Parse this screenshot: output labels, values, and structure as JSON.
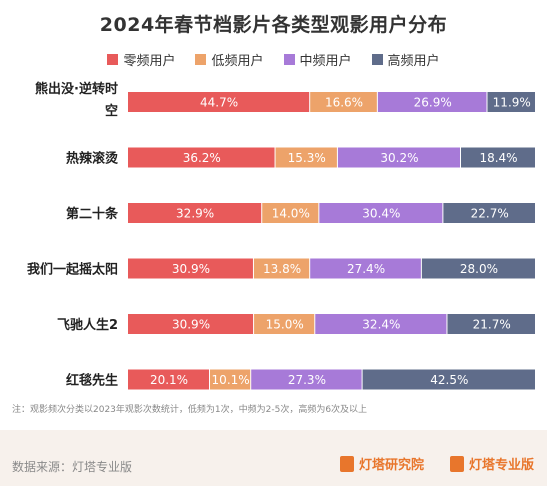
{
  "chart_data": {
    "type": "bar",
    "orientation": "horizontal",
    "stacked": true,
    "title": "2024年春节档影片各类型观影用户分布",
    "categories": [
      "熊出没·逆转时空",
      "热辣滚烫",
      "第二十条",
      "我们一起摇太阳",
      "飞驰人生2",
      "红毯先生"
    ],
    "category_label_lines": [
      [
        "熊出没·逆转时",
        "空"
      ],
      [
        "热辣滚烫"
      ],
      [
        "第二十条"
      ],
      [
        "我们一起摇太阳"
      ],
      [
        "飞驰人生2"
      ],
      [
        "红毯先生"
      ]
    ],
    "series": [
      {
        "name": "零频用户",
        "color": "#e85a5a",
        "values": [
          44.7,
          36.2,
          32.9,
          30.9,
          30.9,
          20.1
        ]
      },
      {
        "name": "低频用户",
        "color": "#eda36a",
        "values": [
          16.6,
          15.3,
          14.0,
          13.8,
          15.0,
          10.1
        ]
      },
      {
        "name": "中频用户",
        "color": "#a77ad8",
        "values": [
          26.9,
          30.2,
          30.4,
          27.4,
          32.4,
          27.3
        ]
      },
      {
        "name": "高频用户",
        "color": "#5f6c8a",
        "values": [
          11.9,
          18.4,
          22.7,
          28.0,
          21.7,
          42.5
        ]
      }
    ],
    "value_format": "percent",
    "legend_position": "top",
    "grid": false
  },
  "footnote": "注：观影频次分类以2023年观影次数统计，低频为1次，中频为2-5次，高频为6次及以上",
  "footer": {
    "source": "数据来源：灯塔专业版",
    "brand1": "灯塔研究院",
    "brand2": "灯塔专业版"
  }
}
